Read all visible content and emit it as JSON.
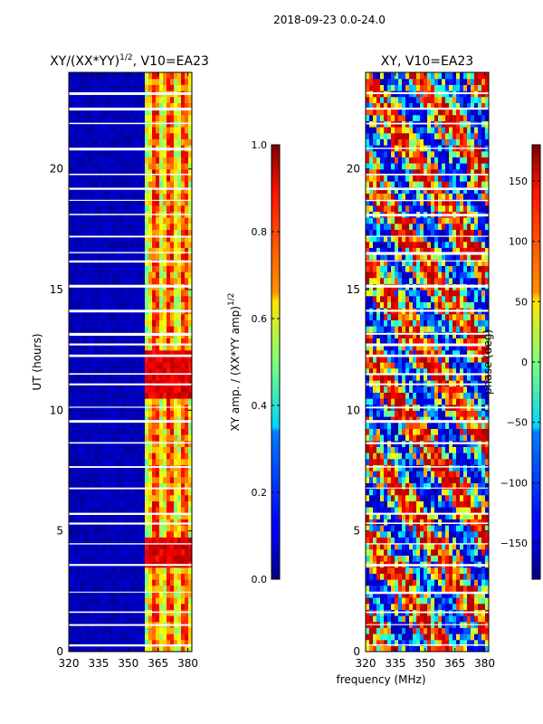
{
  "figure": {
    "suptitle": "2018-09-23 0.0-24.0",
    "shared_xlabel": "frequency (MHz)"
  },
  "chart_data": [
    {
      "type": "heatmap",
      "title": "XY/(XX*YY)^1/2, V10=EA23",
      "title_main": "XY/(XX*YY)",
      "title_exp": "1/2",
      "title_tail": ", V10=EA23",
      "xlabel": "frequency (MHz)",
      "ylabel": "UT (hours)",
      "xlim": [
        320,
        382
      ],
      "ylim": [
        0,
        24
      ],
      "x_ticks": [
        320,
        335,
        350,
        365,
        380
      ],
      "y_ticks": [
        0,
        5,
        10,
        15,
        20
      ],
      "colorbar": {
        "label": "XY amp. / (XX*YY amp)^1/2",
        "label_main": "XY amp. / (XX*YY amp)",
        "label_exp": "1/2",
        "range": [
          0.0,
          1.0
        ],
        "ticks": [
          0.0,
          0.2,
          0.4,
          0.6,
          0.8,
          1.0
        ],
        "tick_labels": [
          "0.0",
          "0.2",
          "0.4",
          "0.6",
          "0.8",
          "1.0"
        ],
        "colormap": "jet"
      },
      "description_values": {
        "low_band_mhz": [
          320,
          359
        ],
        "low_band_value": 0.05,
        "high_band_mhz": [
          359,
          382
        ],
        "high_band_value_range": [
          0.3,
          0.95
        ]
      }
    },
    {
      "type": "heatmap",
      "title": "XY, V10=EA23",
      "xlabel": "frequency (MHz)",
      "ylabel": "",
      "xlim": [
        320,
        382
      ],
      "ylim": [
        0,
        24
      ],
      "x_ticks": [
        320,
        335,
        350,
        365,
        380
      ],
      "y_ticks": [
        0,
        5,
        10,
        15,
        20
      ],
      "colorbar": {
        "label": "phase (deg)",
        "range": [
          -180,
          180
        ],
        "ticks": [
          -150,
          -100,
          -50,
          0,
          50,
          100,
          150
        ],
        "tick_labels": [
          "−150",
          "−100",
          "−50",
          "0",
          "50",
          "100",
          "150"
        ],
        "colormap": "jet"
      }
    }
  ],
  "colors": {
    "jet_low": "#00007f",
    "jet_high": "#7f0000",
    "gap": "#ffffff"
  }
}
